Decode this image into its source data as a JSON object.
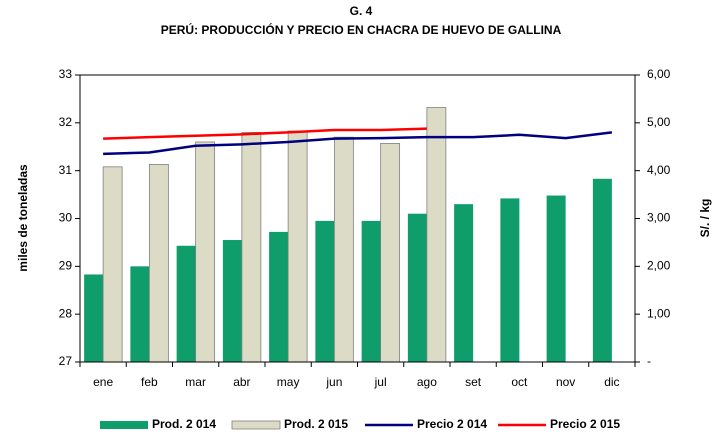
{
  "chart_data": {
    "type": "bar_line",
    "title": "G. 4",
    "subtitle": "PERÚ: PRODUCCIÓN Y PRECIO EN CHACRA DE HUEVO DE GALLINA",
    "ylabel": "miles de toneladas",
    "y2label": "S/. / kg",
    "categories": [
      "ene",
      "feb",
      "mar",
      "abr",
      "may",
      "jun",
      "jul",
      "ago",
      "set",
      "oct",
      "nov",
      "dic"
    ],
    "ylim": [
      27,
      33
    ],
    "yticks": [
      27,
      28,
      29,
      30,
      31,
      32,
      33
    ],
    "y2lim": [
      0,
      6
    ],
    "y2ticks": [
      {
        "value": 0,
        "label": "-"
      },
      {
        "value": 1,
        "label": "1,00"
      },
      {
        "value": 2,
        "label": "2,00"
      },
      {
        "value": 3,
        "label": "3,00"
      },
      {
        "value": 4,
        "label": "4,00"
      },
      {
        "value": 5,
        "label": "5,00"
      },
      {
        "value": 6,
        "label": "6,00"
      }
    ],
    "grid": false,
    "legend": "bottom",
    "series": [
      {
        "name": "Prod. 2 014",
        "kind": "bar",
        "color": "#0f9d6b",
        "values": [
          28.83,
          29.0,
          29.43,
          29.55,
          29.72,
          29.95,
          29.95,
          30.1,
          30.3,
          30.42,
          30.48,
          30.83
        ]
      },
      {
        "name": "Prod. 2 015",
        "kind": "bar",
        "color": "#dcdcc6",
        "values": [
          31.08,
          31.13,
          31.6,
          31.8,
          31.83,
          31.7,
          31.57,
          32.32,
          null,
          null,
          null,
          null
        ]
      },
      {
        "name": "Precio 2 014",
        "kind": "line",
        "axis": "y2",
        "color": "#000080",
        "values": [
          4.35,
          4.38,
          4.52,
          4.55,
          4.6,
          4.67,
          4.68,
          4.7,
          4.7,
          4.75,
          4.68,
          4.8
        ]
      },
      {
        "name": "Precio 2 015",
        "kind": "line",
        "axis": "y2",
        "color": "#ff0000",
        "values": [
          4.67,
          4.7,
          4.73,
          4.76,
          4.8,
          4.85,
          4.85,
          4.88,
          null,
          null,
          null,
          null
        ]
      }
    ]
  }
}
